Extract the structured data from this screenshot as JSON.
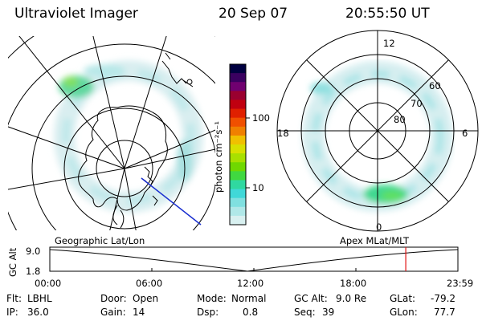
{
  "header": {
    "instrument": "Ultraviolet Imager",
    "date": "20 Sep 07",
    "time": "20:55:50 UT"
  },
  "left_map": {
    "caption": "Geographic Lat/Lon"
  },
  "right_map": {
    "caption": "Apex MLat/MLT",
    "mlt_labels": {
      "top": "12",
      "left": "18",
      "right": "6",
      "bottom": "0"
    },
    "lat_labels": [
      "60",
      "70",
      "80"
    ]
  },
  "colorbar": {
    "unit_label": "photon cm⁻²s⁻¹",
    "tick_labels": [
      "100",
      "10"
    ],
    "colors": [
      "#000040",
      "#3a0060",
      "#700070",
      "#9a0030",
      "#c00010",
      "#e02000",
      "#f05000",
      "#f08000",
      "#f0c000",
      "#d8e000",
      "#a8e000",
      "#70d800",
      "#40d840",
      "#30d8a0",
      "#40d8d8",
      "#80e0e0",
      "#b0e8e8",
      "#d8f0f0"
    ]
  },
  "timeline": {
    "y_axis_label": "GC Alt",
    "y_ticks": [
      "9.0",
      "1.8"
    ],
    "x_ticks": [
      "00:00",
      "06:00",
      "12:00",
      "18:00",
      "23:59"
    ],
    "current_time_fraction": 0.8722
  },
  "footer": {
    "row1": [
      {
        "label": "Flt:",
        "value": "LBHL"
      },
      {
        "label": "Door:",
        "value": "Open"
      },
      {
        "label": "Mode:",
        "value": "Normal"
      },
      {
        "label": "GC Alt:",
        "value": "9.0 Re"
      },
      {
        "label": "GLat:",
        "value": "-79.2"
      }
    ],
    "row2": [
      {
        "label": "IP:",
        "value": "36.0"
      },
      {
        "label": "Gain:",
        "value": "14"
      },
      {
        "label": "Dsp:",
        "value": "0.8"
      },
      {
        "label": "Seq:",
        "value": "39"
      },
      {
        "label": "GLon:",
        "value": "77.7"
      }
    ]
  }
}
